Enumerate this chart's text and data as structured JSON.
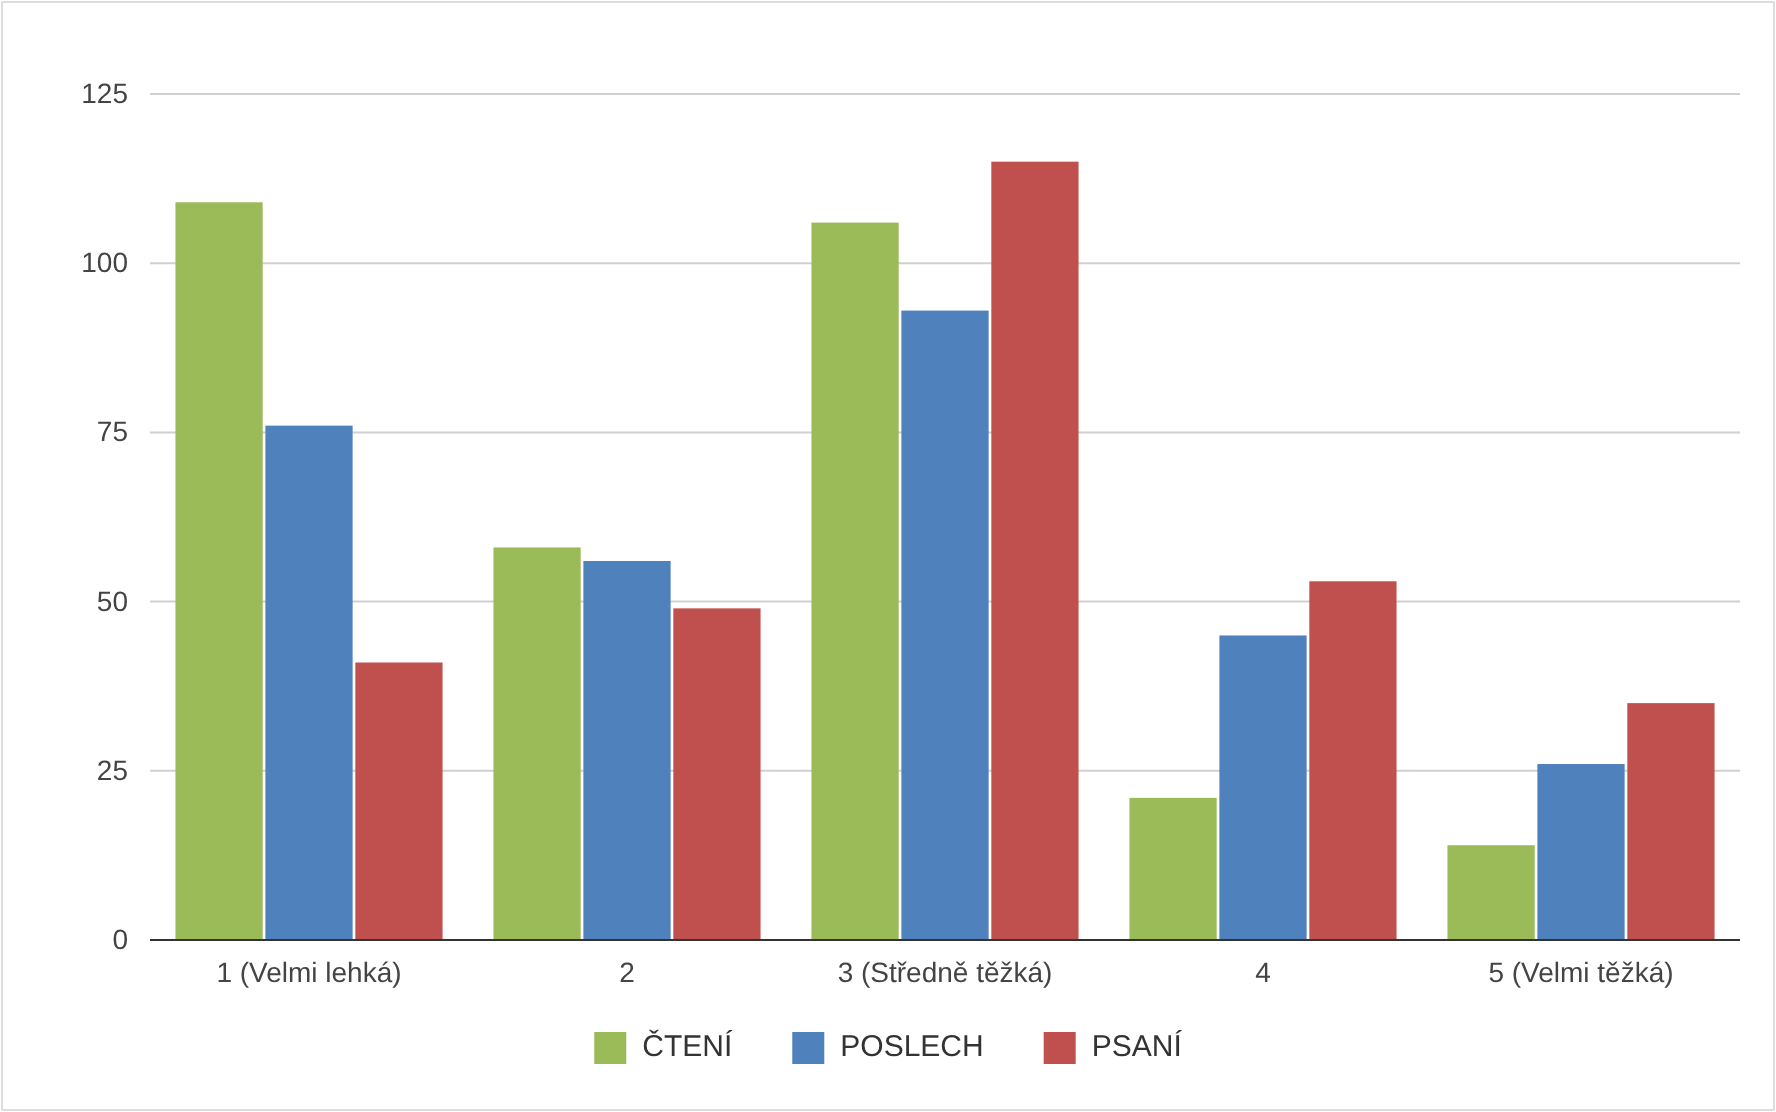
{
  "chart_data": {
    "type": "bar",
    "categories": [
      "1 (Velmi lehká)",
      "2",
      "3 (Středně těžká)",
      "4",
      "5 (Velmi těžká)"
    ],
    "series": [
      {
        "name": "ČTENÍ",
        "color": "#9bbb59",
        "values": [
          109,
          58,
          106,
          21,
          14
        ]
      },
      {
        "name": "POSLECH",
        "color": "#4f81bd",
        "values": [
          76,
          56,
          93,
          45,
          26
        ]
      },
      {
        "name": "PSANÍ",
        "color": "#c0504d",
        "values": [
          41,
          49,
          115,
          53,
          35
        ]
      }
    ],
    "ylim": [
      0,
      125
    ],
    "yticks": [
      0,
      25,
      50,
      75,
      100,
      125
    ],
    "grid": "y",
    "legend": "bottom"
  }
}
